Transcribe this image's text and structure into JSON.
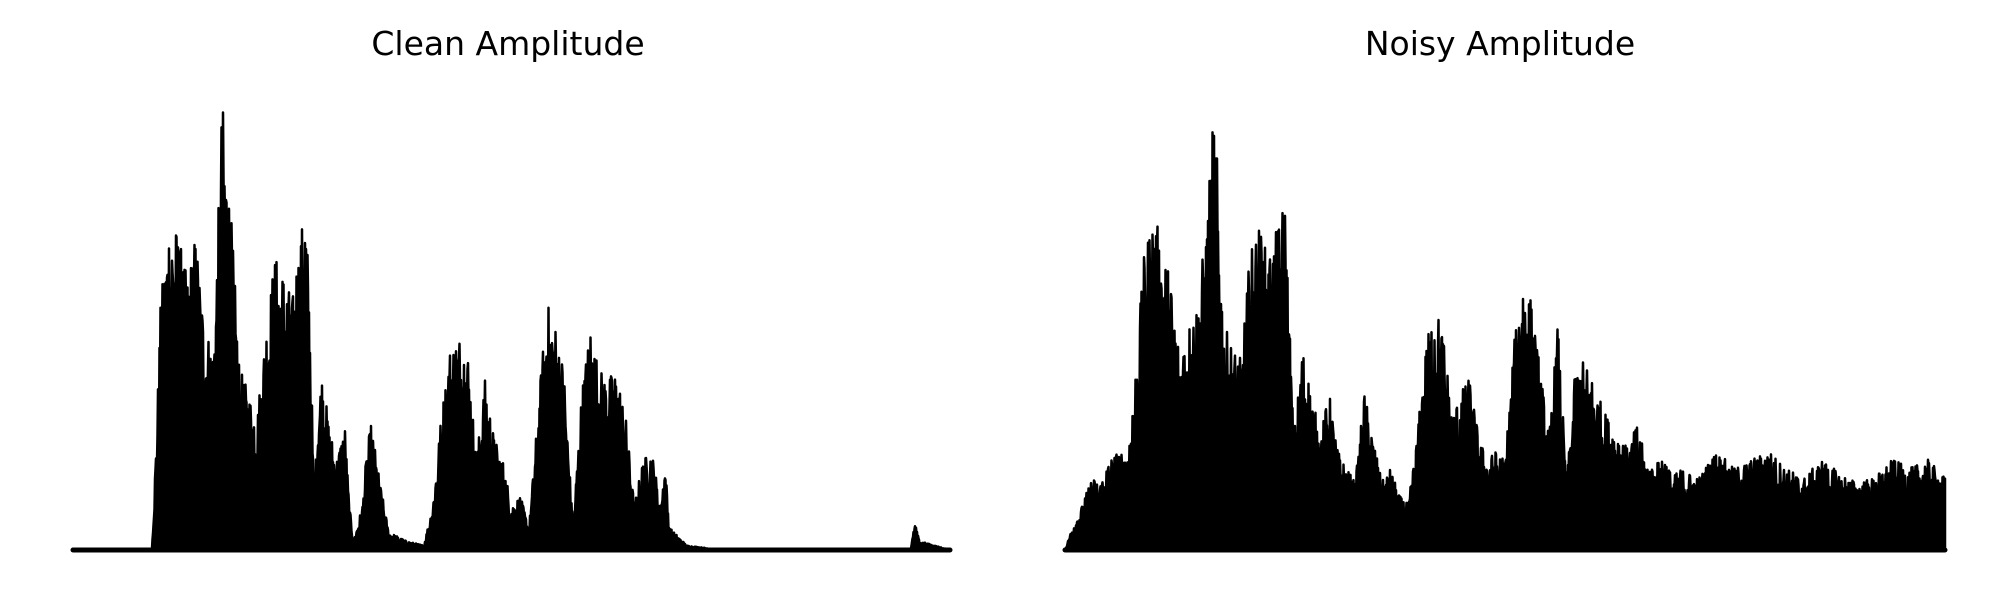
{
  "chart_data": [
    {
      "type": "area",
      "title": "Clean Amplitude",
      "xlabel": "",
      "ylabel": "",
      "axes_visible": false,
      "grid": false,
      "color": "#000000",
      "y_range": [
        0,
        1.0
      ],
      "envelope": [
        [
          0.0,
          0.0
        ],
        [
          0.09,
          0.0
        ],
        [
          0.095,
          0.25
        ],
        [
          0.1,
          0.55
        ],
        [
          0.11,
          0.75
        ],
        [
          0.12,
          0.7
        ],
        [
          0.13,
          0.6
        ],
        [
          0.14,
          0.7
        ],
        [
          0.15,
          0.5
        ],
        [
          0.16,
          0.45
        ],
        [
          0.165,
          0.7
        ],
        [
          0.17,
          1.0
        ],
        [
          0.18,
          0.75
        ],
        [
          0.19,
          0.4
        ],
        [
          0.2,
          0.35
        ],
        [
          0.21,
          0.3
        ],
        [
          0.22,
          0.5
        ],
        [
          0.23,
          0.65
        ],
        [
          0.24,
          0.62
        ],
        [
          0.25,
          0.55
        ],
        [
          0.255,
          0.65
        ],
        [
          0.26,
          0.7
        ],
        [
          0.265,
          0.78
        ],
        [
          0.27,
          0.55
        ],
        [
          0.275,
          0.1
        ],
        [
          0.28,
          0.35
        ],
        [
          0.285,
          0.4
        ],
        [
          0.29,
          0.3
        ],
        [
          0.3,
          0.2
        ],
        [
          0.31,
          0.28
        ],
        [
          0.315,
          0.1
        ],
        [
          0.32,
          0.02
        ],
        [
          0.33,
          0.1
        ],
        [
          0.335,
          0.22
        ],
        [
          0.34,
          0.28
        ],
        [
          0.35,
          0.15
        ],
        [
          0.36,
          0.04
        ],
        [
          0.38,
          0.02
        ],
        [
          0.4,
          0.01
        ],
        [
          0.41,
          0.1
        ],
        [
          0.42,
          0.3
        ],
        [
          0.43,
          0.45
        ],
        [
          0.44,
          0.48
        ],
        [
          0.45,
          0.45
        ],
        [
          0.46,
          0.2
        ],
        [
          0.47,
          0.38
        ],
        [
          0.48,
          0.25
        ],
        [
          0.49,
          0.2
        ],
        [
          0.5,
          0.1
        ],
        [
          0.51,
          0.12
        ],
        [
          0.52,
          0.05
        ],
        [
          0.53,
          0.3
        ],
        [
          0.54,
          0.55
        ],
        [
          0.55,
          0.5
        ],
        [
          0.56,
          0.4
        ],
        [
          0.57,
          0.05
        ],
        [
          0.58,
          0.35
        ],
        [
          0.59,
          0.5
        ],
        [
          0.6,
          0.4
        ],
        [
          0.61,
          0.38
        ],
        [
          0.62,
          0.4
        ],
        [
          0.63,
          0.3
        ],
        [
          0.64,
          0.1
        ],
        [
          0.65,
          0.2
        ],
        [
          0.66,
          0.22
        ],
        [
          0.67,
          0.1
        ],
        [
          0.675,
          0.2
        ],
        [
          0.68,
          0.05
        ],
        [
          0.7,
          0.01
        ],
        [
          0.74,
          0.0
        ],
        [
          0.8,
          0.0
        ],
        [
          0.9,
          0.0
        ],
        [
          0.955,
          0.0
        ],
        [
          0.96,
          0.06
        ],
        [
          0.965,
          0.02
        ],
        [
          1.0,
          0.0
        ]
      ]
    },
    {
      "type": "area",
      "title": "Noisy Amplitude",
      "xlabel": "",
      "ylabel": "",
      "axes_visible": false,
      "grid": false,
      "color": "#000000",
      "y_range": [
        0,
        1.0
      ],
      "envelope": [
        [
          0.0,
          0.0
        ],
        [
          0.01,
          0.06
        ],
        [
          0.02,
          0.1
        ],
        [
          0.03,
          0.16
        ],
        [
          0.04,
          0.15
        ],
        [
          0.05,
          0.2
        ],
        [
          0.06,
          0.22
        ],
        [
          0.07,
          0.2
        ],
        [
          0.08,
          0.4
        ],
        [
          0.09,
          0.65
        ],
        [
          0.1,
          0.75
        ],
        [
          0.11,
          0.68
        ],
        [
          0.12,
          0.6
        ],
        [
          0.13,
          0.45
        ],
        [
          0.14,
          0.5
        ],
        [
          0.15,
          0.55
        ],
        [
          0.16,
          0.7
        ],
        [
          0.17,
          1.0
        ],
        [
          0.18,
          0.5
        ],
        [
          0.19,
          0.45
        ],
        [
          0.2,
          0.42
        ],
        [
          0.21,
          0.65
        ],
        [
          0.22,
          0.72
        ],
        [
          0.23,
          0.65
        ],
        [
          0.24,
          0.7
        ],
        [
          0.25,
          0.78
        ],
        [
          0.26,
          0.25
        ],
        [
          0.27,
          0.45
        ],
        [
          0.28,
          0.35
        ],
        [
          0.29,
          0.25
        ],
        [
          0.3,
          0.35
        ],
        [
          0.31,
          0.22
        ],
        [
          0.32,
          0.18
        ],
        [
          0.33,
          0.15
        ],
        [
          0.34,
          0.35
        ],
        [
          0.35,
          0.25
        ],
        [
          0.36,
          0.15
        ],
        [
          0.37,
          0.18
        ],
        [
          0.38,
          0.12
        ],
        [
          0.39,
          0.1
        ],
        [
          0.4,
          0.25
        ],
        [
          0.41,
          0.45
        ],
        [
          0.42,
          0.55
        ],
        [
          0.43,
          0.48
        ],
        [
          0.44,
          0.3
        ],
        [
          0.45,
          0.35
        ],
        [
          0.46,
          0.38
        ],
        [
          0.47,
          0.25
        ],
        [
          0.48,
          0.2
        ],
        [
          0.49,
          0.22
        ],
        [
          0.5,
          0.2
        ],
        [
          0.51,
          0.45
        ],
        [
          0.52,
          0.62
        ],
        [
          0.53,
          0.55
        ],
        [
          0.54,
          0.4
        ],
        [
          0.55,
          0.25
        ],
        [
          0.56,
          0.5
        ],
        [
          0.57,
          0.15
        ],
        [
          0.58,
          0.4
        ],
        [
          0.59,
          0.42
        ],
        [
          0.6,
          0.38
        ],
        [
          0.61,
          0.32
        ],
        [
          0.62,
          0.28
        ],
        [
          0.63,
          0.26
        ],
        [
          0.64,
          0.22
        ],
        [
          0.65,
          0.28
        ],
        [
          0.66,
          0.2
        ],
        [
          0.67,
          0.18
        ],
        [
          0.68,
          0.22
        ],
        [
          0.69,
          0.16
        ],
        [
          0.7,
          0.18
        ],
        [
          0.72,
          0.16
        ],
        [
          0.74,
          0.22
        ],
        [
          0.76,
          0.18
        ],
        [
          0.78,
          0.2
        ],
        [
          0.8,
          0.22
        ],
        [
          0.82,
          0.18
        ],
        [
          0.84,
          0.16
        ],
        [
          0.86,
          0.2
        ],
        [
          0.88,
          0.17
        ],
        [
          0.9,
          0.15
        ],
        [
          0.92,
          0.16
        ],
        [
          0.94,
          0.2
        ],
        [
          0.96,
          0.18
        ],
        [
          0.98,
          0.2
        ],
        [
          1.0,
          0.16
        ]
      ]
    }
  ]
}
